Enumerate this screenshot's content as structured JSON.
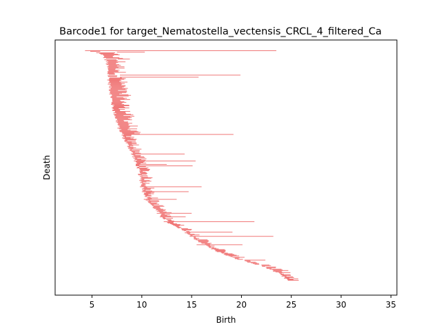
{
  "chart_data": {
    "type": "barcode",
    "title": "Barcode1 for target_Nematostella_vectensis_CRCL_4_filtered_Ca",
    "xlabel": "Birth",
    "ylabel": "Death",
    "xlim": [
      1.3,
      35.6
    ],
    "xticks": [
      5,
      10,
      15,
      20,
      25,
      30,
      35
    ],
    "yticks": [],
    "bar_color": "#f07878",
    "bar_count_estimate": 330,
    "anchor_bars": [
      {
        "rank": 0,
        "start": 4.3,
        "end": 23.5
      },
      {
        "rank": 2,
        "start": 7.5,
        "end": 10.3
      },
      {
        "rank": 12,
        "start": 7.6,
        "end": 8.8
      },
      {
        "rank": 35,
        "start": 7.8,
        "end": 19.9
      },
      {
        "rank": 38,
        "start": 7.8,
        "end": 15.7
      },
      {
        "rank": 120,
        "start": 8.2,
        "end": 19.2
      },
      {
        "rank": 148,
        "start": 8.9,
        "end": 14.3
      },
      {
        "rank": 158,
        "start": 9.2,
        "end": 15.4
      },
      {
        "rank": 163,
        "start": 9.4,
        "end": 12.5
      },
      {
        "rank": 165,
        "start": 9.4,
        "end": 15.1
      },
      {
        "rank": 195,
        "start": 9.8,
        "end": 16.0
      },
      {
        "rank": 202,
        "start": 10.0,
        "end": 14.7
      },
      {
        "rank": 213,
        "start": 10.2,
        "end": 13.5
      },
      {
        "rank": 233,
        "start": 11.5,
        "end": 15.0
      },
      {
        "rank": 238,
        "start": 11.8,
        "end": 14.4
      },
      {
        "rank": 245,
        "start": 12.2,
        "end": 21.3
      },
      {
        "rank": 260,
        "start": 14.5,
        "end": 19.1
      },
      {
        "rank": 266,
        "start": 14.8,
        "end": 23.2
      },
      {
        "rank": 278,
        "start": 15.5,
        "end": 20.1
      },
      {
        "rank": 300,
        "start": 20.3,
        "end": 22.4
      },
      {
        "rank": 307,
        "start": 22.0,
        "end": 22.8
      },
      {
        "rank": 315,
        "start": 23.2,
        "end": 24.7
      }
    ],
    "frontier": [
      {
        "rank": 0,
        "start": 4.3
      },
      {
        "rank": 5,
        "start": 5.8
      },
      {
        "rank": 15,
        "start": 6.3
      },
      {
        "rank": 40,
        "start": 6.5
      },
      {
        "rank": 80,
        "start": 6.9
      },
      {
        "rank": 110,
        "start": 7.5
      },
      {
        "rank": 125,
        "start": 8.0
      },
      {
        "rank": 145,
        "start": 8.8
      },
      {
        "rank": 165,
        "start": 9.4
      },
      {
        "rank": 190,
        "start": 9.8
      },
      {
        "rank": 215,
        "start": 10.4
      },
      {
        "rank": 232,
        "start": 11.5
      },
      {
        "rank": 248,
        "start": 12.6
      },
      {
        "rank": 258,
        "start": 14.0
      },
      {
        "rank": 272,
        "start": 15.4
      },
      {
        "rank": 285,
        "start": 17.0
      },
      {
        "rank": 296,
        "start": 18.8
      },
      {
        "rank": 303,
        "start": 20.5
      },
      {
        "rank": 310,
        "start": 22.2
      },
      {
        "rank": 318,
        "start": 23.4
      },
      {
        "rank": 330,
        "start": 24.6
      }
    ]
  }
}
